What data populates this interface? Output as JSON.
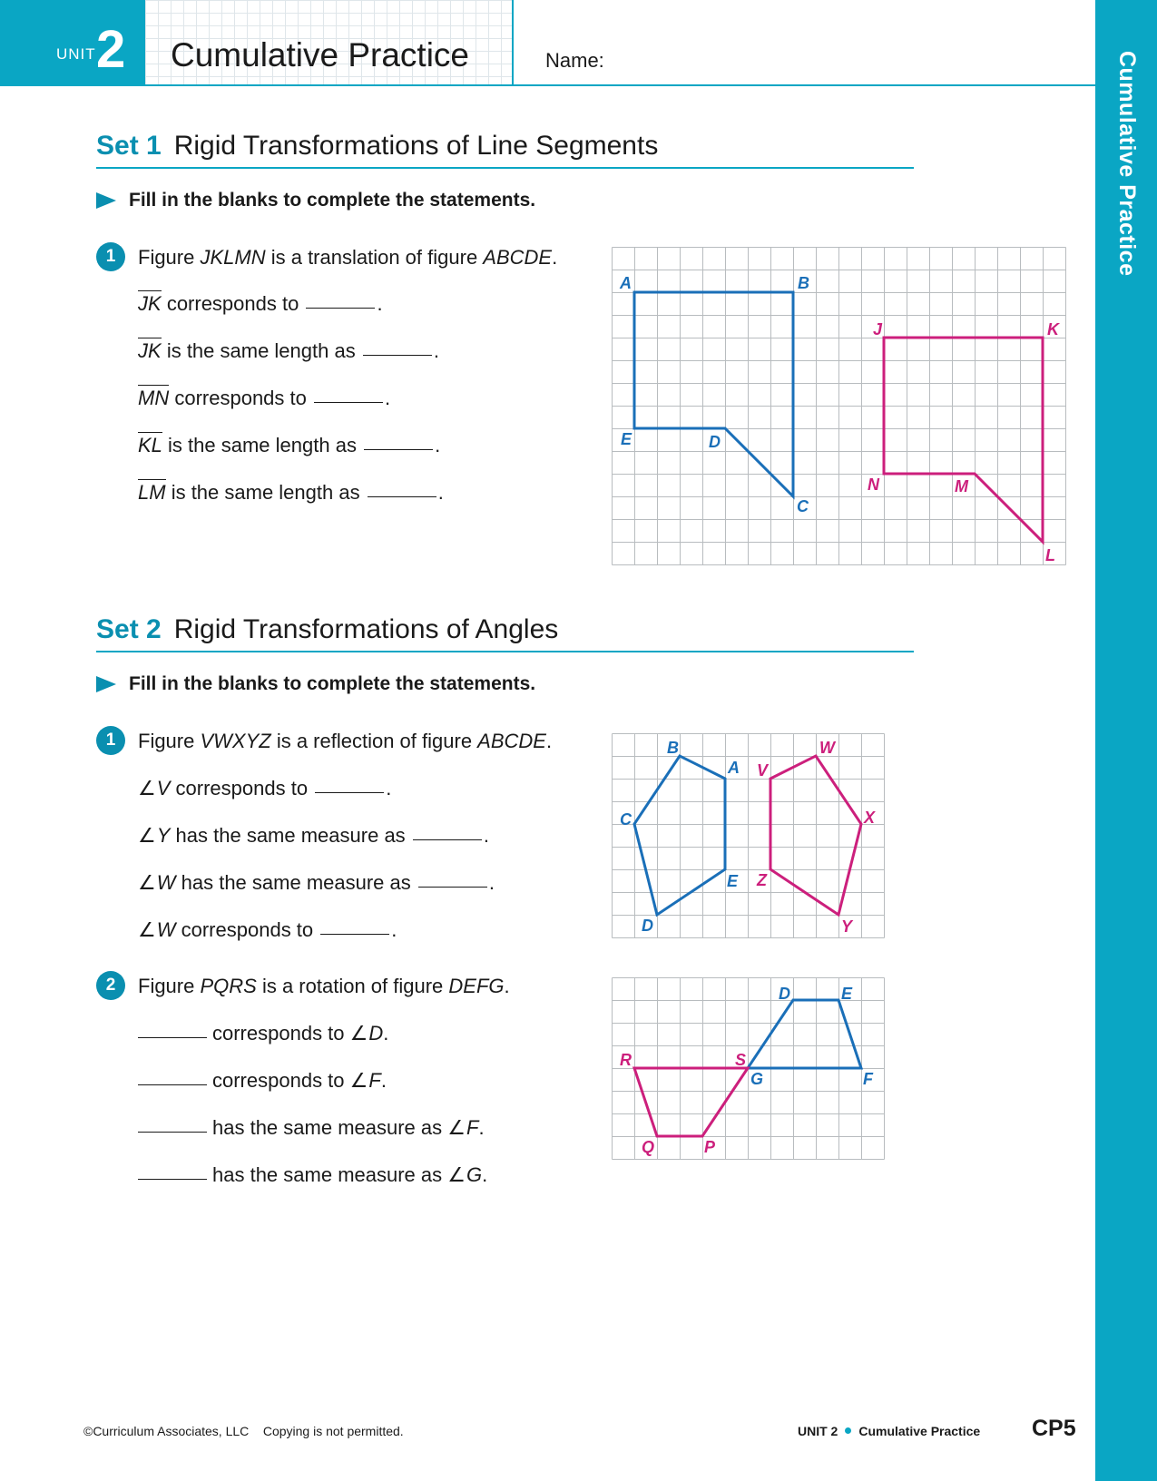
{
  "header": {
    "unit_word": "UNIT",
    "unit_number": "2",
    "title": "Cumulative Practice",
    "name_label": "Name:",
    "side_tab": "Cumulative Practice"
  },
  "set1": {
    "label": "Set 1",
    "title": "Rigid Transformations of Line Segments",
    "instruction": "Fill in the blanks to complete the statements.",
    "q1": {
      "number": "1",
      "text_a": "Figure ",
      "figure1": "JKLMN",
      "text_b": " is a translation of figure ",
      "figure2": "ABCDE",
      "text_c": ".",
      "statements": [
        {
          "seg": "JK",
          "text": "corresponds to"
        },
        {
          "seg": "JK",
          "text": "is the same length as"
        },
        {
          "seg": "MN",
          "text": "corresponds to"
        },
        {
          "seg": "KL",
          "text": "is the same length as"
        },
        {
          "seg": "LM",
          "text": "is the same length as"
        }
      ]
    }
  },
  "set2": {
    "label": "Set 2",
    "title": "Rigid Transformations of Angles",
    "instruction": "Fill in the blanks to complete the statements.",
    "q1": {
      "number": "1",
      "text_a": "Figure ",
      "figure1": "VWXYZ",
      "text_b": " is a reflection of figure ",
      "figure2": "ABCDE",
      "text_c": ".",
      "statements": [
        {
          "angle": "V",
          "text": "corresponds to"
        },
        {
          "angle": "Y",
          "text": "has the same measure as"
        },
        {
          "angle": "W",
          "text": "has the same measure as"
        },
        {
          "angle": "W",
          "text": "corresponds to"
        }
      ]
    },
    "q2": {
      "number": "2",
      "text_a": "Figure ",
      "figure1": "PQRS",
      "text_b": " is a rotation of figure ",
      "figure2": "DEFG",
      "text_c": ".",
      "statements": [
        {
          "text": "corresponds to",
          "angle": "D"
        },
        {
          "text": "corresponds to",
          "angle": "F"
        },
        {
          "text": "has the same measure as",
          "angle": "F"
        },
        {
          "text": "has the same measure as",
          "angle": "G"
        }
      ]
    }
  },
  "diagrams": {
    "colors": {
      "blue": "#1a6fb8",
      "magenta": "#cc1f7c",
      "grid": "#b8bcbf"
    },
    "d1": {
      "labels_blue": [
        "A",
        "B",
        "C",
        "D",
        "E"
      ],
      "labels_magenta": [
        "J",
        "K",
        "L",
        "M",
        "N"
      ]
    },
    "d2": {
      "labels_blue": [
        "A",
        "B",
        "C",
        "D",
        "E"
      ],
      "labels_magenta": [
        "V",
        "W",
        "X",
        "Y",
        "Z"
      ]
    },
    "d3": {
      "labels_blue": [
        "D",
        "E",
        "F",
        "G"
      ],
      "labels_magenta": [
        "P",
        "Q",
        "R",
        "S"
      ]
    }
  },
  "footer": {
    "copyright": "©Curriculum Associates, LLC",
    "copy_notice": "Copying is not permitted.",
    "unit": "UNIT 2",
    "section": "Cumulative Practice",
    "page": "CP5"
  }
}
